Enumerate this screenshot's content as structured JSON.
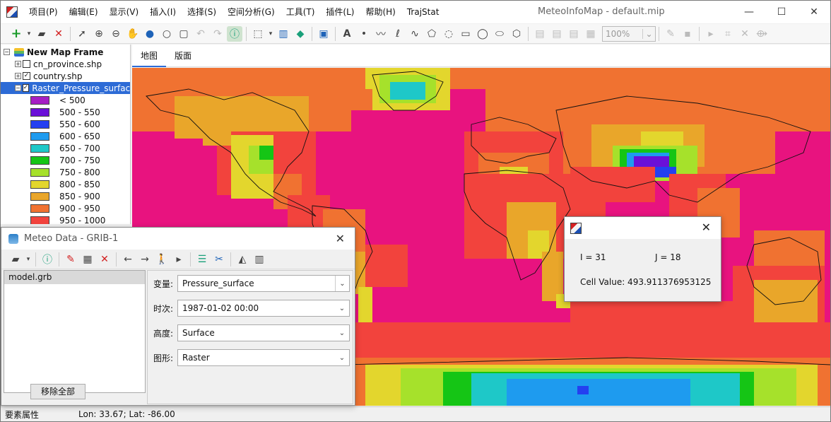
{
  "app": {
    "title": "MeteoInfoMap - default.mip",
    "menu": [
      "项目(P)",
      "编辑(E)",
      "显示(V)",
      "插入(I)",
      "选择(S)",
      "空间分析(G)",
      "工具(T)",
      "插件(L)",
      "帮助(H)",
      "TrajStat"
    ],
    "window_controls": {
      "minimize": "—",
      "maximize": "☐",
      "close": "✕"
    }
  },
  "toolbar": {
    "zoom_value": "100%",
    "icons": [
      "add-layer-icon",
      "open-folder-icon",
      "remove-layer-icon",
      "select-pointer-icon",
      "zoom-in-icon",
      "zoom-out-icon",
      "pan-hand-icon",
      "full-extent-globe-icon",
      "magnifier-icon",
      "zoom-rect-icon",
      "undo-icon",
      "redo-icon",
      "identify-icon",
      "select-features-icon",
      "measure-icon",
      "label-icon",
      "image-icon",
      "text-icon",
      "point-icon",
      "polyline-icon",
      "freehand-line-icon",
      "curve-icon",
      "polygon-icon",
      "curve-polygon-icon",
      "rectangle-icon",
      "circle-icon",
      "ellipse-icon",
      "freehand-polygon-icon",
      "save-edit-icon",
      "edit-pencil-icon",
      "save-icon"
    ]
  },
  "layers": {
    "frame_label": "New Map Frame",
    "items": [
      {
        "label": "cn_province.shp",
        "checked": false
      },
      {
        "label": "country.shp",
        "checked": true
      },
      {
        "label": "Raster_Pressure_surface",
        "checked": true
      }
    ],
    "legend": [
      {
        "label": "< 500",
        "color": "#a61fc4"
      },
      {
        "label": "500 - 550",
        "color": "#6a10d8"
      },
      {
        "label": "550 - 600",
        "color": "#2440f0"
      },
      {
        "label": "600 - 650",
        "color": "#1e9bef"
      },
      {
        "label": "650 - 700",
        "color": "#1ec8c8"
      },
      {
        "label": "700 - 750",
        "color": "#15c515"
      },
      {
        "label": "750 - 800",
        "color": "#a6e12b"
      },
      {
        "label": "800 - 850",
        "color": "#e3d62d"
      },
      {
        "label": "850 - 900",
        "color": "#e9a62a"
      },
      {
        "label": "900 - 950",
        "color": "#f07231"
      },
      {
        "label": "950 - 1000",
        "color": "#f2433d"
      }
    ]
  },
  "tabs": {
    "map": "地图",
    "layout": "版面"
  },
  "status": {
    "left": "要素属性",
    "coords": "Lon: 33.67; Lat: -86.00"
  },
  "meteo_dialog": {
    "title": "Meteo Data - GRIB-1",
    "files": [
      "model.grb"
    ],
    "remove_all": "移除全部",
    "fields": [
      {
        "label": "变量:",
        "value": "Pressure_surface"
      },
      {
        "label": "时次:",
        "value": "1987-01-02 00:00"
      },
      {
        "label": "高度:",
        "value": "Surface"
      },
      {
        "label": "图形:",
        "value": "Raster"
      }
    ]
  },
  "cell_popup": {
    "i_text": "I = 31",
    "j_text": "J = 18",
    "value_text": "Cell Value: 493.911376953125"
  }
}
